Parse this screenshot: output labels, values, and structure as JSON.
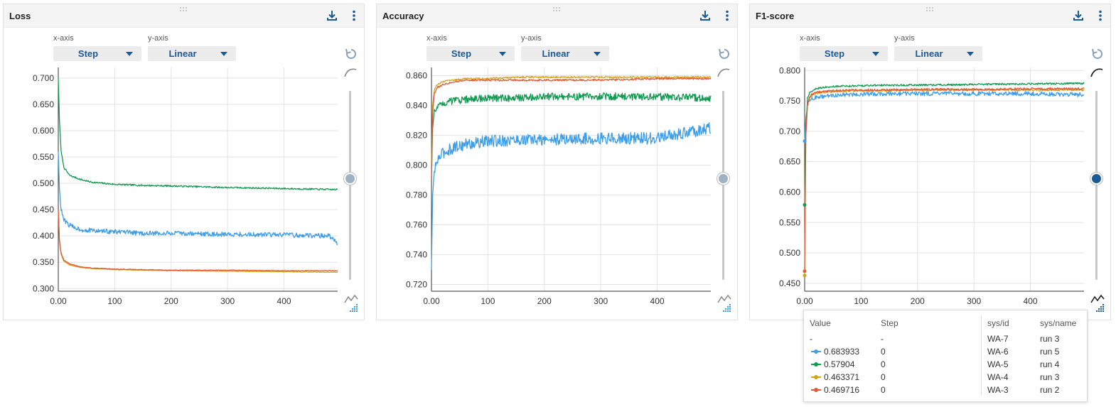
{
  "axis_controls": {
    "x_label": "x-axis",
    "y_label": "y-axis",
    "x_value": "Step",
    "y_value": "Linear"
  },
  "colors": {
    "blue": "#3f9ee8",
    "green": "#119a52",
    "gold": "#d4a21a",
    "orange": "#e05a35",
    "accent": "#1a5a96"
  },
  "panels": [
    {
      "title": "Loss",
      "icons": [
        "download-icon",
        "more-vert-icon"
      ],
      "smoothing_level": 0
    },
    {
      "title": "Accuracy",
      "icons": [
        "download-icon",
        "more-vert-icon"
      ],
      "smoothing_level": 0
    },
    {
      "title": "F1-score",
      "icons": [
        "download-icon",
        "more-vert-icon"
      ],
      "smoothing_level": 0
    }
  ],
  "chart_data": [
    {
      "type": "line",
      "title": "Loss",
      "xlim": [
        0,
        495
      ],
      "ylim": [
        0.295,
        0.72
      ],
      "x_ticks": [
        "0.00",
        "100",
        "200",
        "300",
        "400"
      ],
      "y_ticks": [
        "0.700",
        "0.650",
        "0.600",
        "0.550",
        "0.500",
        "0.450",
        "0.400",
        "0.350",
        "0.300"
      ],
      "y_tick_values": [
        0.7,
        0.65,
        0.6,
        0.55,
        0.5,
        0.45,
        0.4,
        0.35,
        0.3
      ],
      "series": [
        {
          "color": "#119a52",
          "x": [
            0,
            2,
            5,
            10,
            20,
            40,
            60,
            100,
            150,
            200,
            300,
            400,
            495
          ],
          "y": [
            0.7,
            0.62,
            0.56,
            0.53,
            0.515,
            0.507,
            0.502,
            0.498,
            0.496,
            0.495,
            0.492,
            0.49,
            0.488
          ]
        },
        {
          "color": "#3f9ee8",
          "x": [
            0,
            2,
            5,
            10,
            20,
            40,
            60,
            100,
            150,
            200,
            300,
            400,
            480,
            495
          ],
          "y": [
            0.56,
            0.49,
            0.45,
            0.43,
            0.42,
            0.412,
            0.41,
            0.408,
            0.405,
            0.405,
            0.403,
            0.402,
            0.4,
            0.385
          ]
        },
        {
          "color": "#d4a21a",
          "x": [
            0,
            2,
            5,
            10,
            20,
            40,
            60,
            100,
            150,
            200,
            300,
            400,
            495
          ],
          "y": [
            0.45,
            0.39,
            0.365,
            0.352,
            0.345,
            0.34,
            0.338,
            0.336,
            0.335,
            0.334,
            0.333,
            0.332,
            0.331
          ]
        },
        {
          "color": "#e05a35",
          "x": [
            0,
            2,
            5,
            10,
            20,
            40,
            60,
            100,
            150,
            200,
            300,
            400,
            495
          ],
          "y": [
            0.45,
            0.392,
            0.367,
            0.354,
            0.347,
            0.341,
            0.339,
            0.337,
            0.336,
            0.335,
            0.335,
            0.334,
            0.334
          ]
        }
      ]
    },
    {
      "type": "line",
      "title": "Accuracy",
      "xlim": [
        0,
        495
      ],
      "ylim": [
        0.7155,
        0.8655
      ],
      "x_ticks": [
        "0.00",
        "100",
        "200",
        "300",
        "400"
      ],
      "y_ticks": [
        "0.860",
        "0.840",
        "0.820",
        "0.800",
        "0.780",
        "0.760",
        "0.740",
        "0.720"
      ],
      "y_tick_values": [
        0.86,
        0.84,
        0.82,
        0.8,
        0.78,
        0.76,
        0.74,
        0.72
      ],
      "series": [
        {
          "color": "#3f9ee8",
          "x": [
            0,
            2,
            5,
            10,
            20,
            40,
            60,
            100,
            150,
            200,
            300,
            400,
            495
          ],
          "y": [
            0.73,
            0.78,
            0.795,
            0.803,
            0.808,
            0.812,
            0.814,
            0.816,
            0.817,
            0.817,
            0.818,
            0.818,
            0.825
          ]
        },
        {
          "color": "#119a52",
          "x": [
            0,
            2,
            5,
            10,
            20,
            40,
            60,
            100,
            150,
            200,
            300,
            400,
            495
          ],
          "y": [
            0.79,
            0.825,
            0.835,
            0.84,
            0.842,
            0.843,
            0.844,
            0.845,
            0.845,
            0.846,
            0.846,
            0.846,
            0.845
          ]
        },
        {
          "color": "#d4a21a",
          "x": [
            0,
            2,
            5,
            10,
            20,
            40,
            60,
            100,
            150,
            200,
            300,
            400,
            495
          ],
          "y": [
            0.8,
            0.84,
            0.85,
            0.854,
            0.856,
            0.857,
            0.858,
            0.858,
            0.859,
            0.859,
            0.859,
            0.859,
            0.859
          ]
        },
        {
          "color": "#e05a35",
          "x": [
            0,
            2,
            5,
            10,
            20,
            40,
            60,
            100,
            150,
            200,
            300,
            400,
            495
          ],
          "y": [
            0.79,
            0.835,
            0.848,
            0.852,
            0.854,
            0.856,
            0.857,
            0.857,
            0.857,
            0.857,
            0.857,
            0.858,
            0.858
          ]
        }
      ]
    },
    {
      "type": "line",
      "title": "F1-score",
      "xlim": [
        0,
        495
      ],
      "ylim": [
        0.437,
        0.805
      ],
      "x_ticks": [
        "0.00",
        "100",
        "200",
        "300",
        "400"
      ],
      "y_ticks": [
        "0.800",
        "0.750",
        "0.700",
        "0.650",
        "0.600",
        "0.550",
        "0.500",
        "0.450"
      ],
      "y_tick_values": [
        0.8,
        0.75,
        0.7,
        0.65,
        0.6,
        0.55,
        0.5,
        0.45
      ],
      "series": [
        {
          "color": "#3f9ee8",
          "x": [
            0,
            2,
            5,
            10,
            20,
            40,
            60,
            100,
            150,
            200,
            300,
            400,
            495
          ],
          "y": [
            0.684,
            0.72,
            0.745,
            0.752,
            0.756,
            0.758,
            0.76,
            0.761,
            0.762,
            0.762,
            0.762,
            0.762,
            0.76
          ]
        },
        {
          "color": "#119a52",
          "x": [
            0,
            2,
            5,
            10,
            20,
            40,
            60,
            100,
            150,
            200,
            300,
            400,
            495
          ],
          "y": [
            0.579,
            0.7,
            0.755,
            0.765,
            0.77,
            0.773,
            0.774,
            0.775,
            0.776,
            0.776,
            0.777,
            0.778,
            0.779
          ]
        },
        {
          "color": "#d4a21a",
          "x": [
            0,
            2,
            5,
            10,
            20,
            40,
            60,
            100,
            150,
            200,
            300,
            400,
            495
          ],
          "y": [
            0.463,
            0.69,
            0.745,
            0.757,
            0.763,
            0.765,
            0.766,
            0.767,
            0.767,
            0.768,
            0.768,
            0.768,
            0.768
          ]
        },
        {
          "color": "#e05a35",
          "x": [
            0,
            2,
            5,
            10,
            20,
            40,
            60,
            100,
            150,
            200,
            300,
            400,
            495
          ],
          "y": [
            0.47,
            0.692,
            0.747,
            0.759,
            0.764,
            0.766,
            0.767,
            0.768,
            0.768,
            0.769,
            0.769,
            0.77,
            0.77
          ]
        }
      ]
    }
  ],
  "tooltip": {
    "headers": {
      "value": "Value",
      "step": "Step",
      "sys_id": "sys/id",
      "sys_name": "sys/name"
    },
    "rows": [
      {
        "color": "",
        "value": "-",
        "step": "-",
        "sys_id": "WA-7",
        "sys_name": "run 3"
      },
      {
        "color": "#3f9ee8",
        "value": "0.683933",
        "step": "0",
        "sys_id": "WA-6",
        "sys_name": "run 5"
      },
      {
        "color": "#119a52",
        "value": "0.57904",
        "step": "0",
        "sys_id": "WA-5",
        "sys_name": "run 4"
      },
      {
        "color": "#d4a21a",
        "value": "0.463371",
        "step": "0",
        "sys_id": "WA-4",
        "sys_name": "run 3"
      },
      {
        "color": "#e05a35",
        "value": "0.469716",
        "step": "0",
        "sys_id": "WA-3",
        "sys_name": "run 2"
      }
    ]
  }
}
